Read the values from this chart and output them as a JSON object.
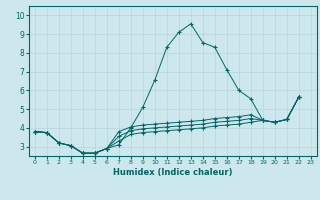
{
  "xlabel": "Humidex (Indice chaleur)",
  "background_color": "#cce8ec",
  "grid_color": "#b8d4d8",
  "line_color": "#006666",
  "xlim": [
    -0.5,
    23.5
  ],
  "ylim": [
    2.5,
    10.5
  ],
  "yticks": [
    3,
    4,
    5,
    6,
    7,
    8,
    9,
    10
  ],
  "xticks": [
    0,
    1,
    2,
    3,
    4,
    5,
    6,
    7,
    8,
    9,
    10,
    11,
    12,
    13,
    14,
    15,
    16,
    17,
    18,
    19,
    20,
    21,
    22,
    23
  ],
  "x_values": [
    0,
    1,
    2,
    3,
    4,
    5,
    6,
    7,
    8,
    9,
    10,
    11,
    12,
    13,
    14,
    15,
    16,
    17,
    18,
    19,
    20,
    21,
    22
  ],
  "series": [
    [
      3.8,
      3.75,
      3.2,
      3.05,
      2.65,
      2.65,
      2.9,
      3.1,
      4.0,
      5.1,
      6.55,
      8.3,
      9.1,
      9.55,
      8.55,
      8.3,
      7.1,
      6.0,
      5.55,
      4.4,
      4.3,
      4.45,
      5.65
    ],
    [
      3.8,
      3.75,
      3.2,
      3.05,
      2.65,
      2.65,
      2.9,
      3.8,
      4.05,
      4.15,
      4.2,
      4.25,
      4.3,
      4.35,
      4.4,
      4.5,
      4.55,
      4.6,
      4.7,
      4.4,
      4.3,
      4.45,
      5.65
    ],
    [
      3.8,
      3.75,
      3.2,
      3.05,
      2.65,
      2.65,
      2.9,
      3.55,
      3.85,
      3.95,
      4.0,
      4.05,
      4.1,
      4.15,
      4.2,
      4.3,
      4.35,
      4.4,
      4.5,
      4.4,
      4.3,
      4.45,
      5.65
    ],
    [
      3.8,
      3.75,
      3.2,
      3.05,
      2.65,
      2.65,
      2.9,
      3.3,
      3.65,
      3.75,
      3.8,
      3.85,
      3.9,
      3.95,
      4.0,
      4.1,
      4.15,
      4.2,
      4.3,
      4.4,
      4.3,
      4.45,
      5.65
    ]
  ]
}
